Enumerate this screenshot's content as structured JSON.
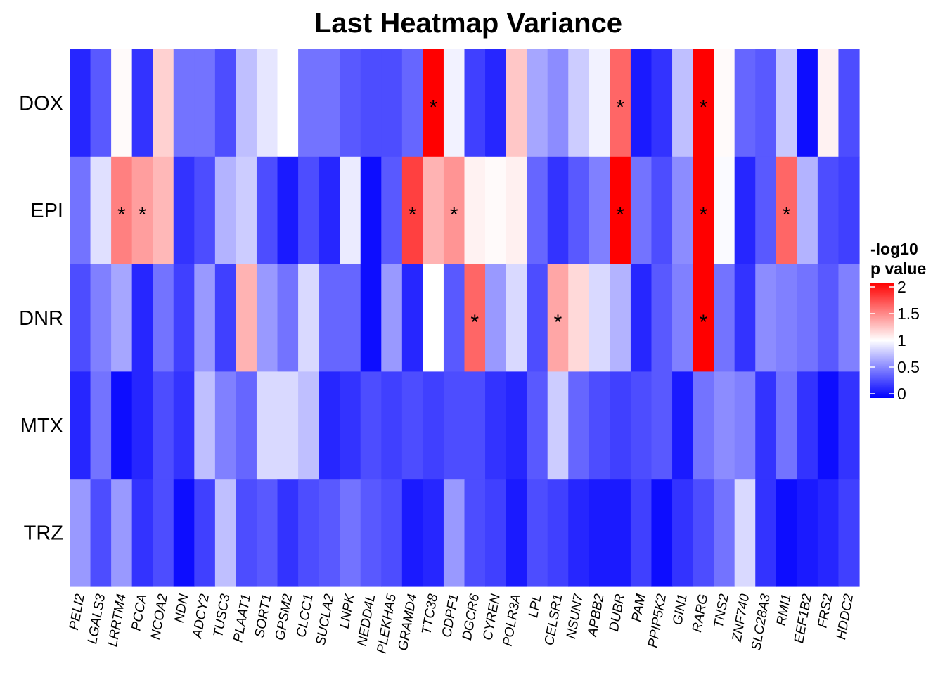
{
  "chart_data": {
    "type": "heatmap",
    "title": "Last Heatmap Variance",
    "xlabel": "",
    "ylabel": "",
    "rows": [
      "DOX",
      "EPI",
      "DNR",
      "MTX",
      "TRZ"
    ],
    "columns": [
      "PELI2",
      "LGALS3",
      "LRRTM4",
      "PCCA",
      "NCOA2",
      "NDN",
      "ADCY2",
      "TUSC3",
      "PLAAT1",
      "SORT1",
      "GPSM2",
      "CLCC1",
      "SUCLA2",
      "LNPK",
      "NEDD4L",
      "PLEKHA5",
      "GRAMD4",
      "TTC38",
      "CDPF1",
      "DGCR6",
      "CYREN",
      "POLR3A",
      "LPL",
      "CELSR1",
      "NSUN7",
      "APBB2",
      "DUBR",
      "PAM",
      "PPIP5K2",
      "GIN1",
      "RARG",
      "TNS2",
      "ZNF740",
      "SLC28A3",
      "RMI1",
      "EEF1B2",
      "FRS2",
      "HDDC2"
    ],
    "values": [
      [
        0.15,
        0.35,
        1.02,
        0.2,
        1.18,
        0.45,
        0.45,
        0.3,
        0.75,
        0.9,
        1.0,
        0.45,
        0.45,
        0.35,
        0.3,
        0.3,
        0.4,
        2.0,
        0.95,
        0.25,
        0.15,
        1.22,
        0.65,
        0.55,
        0.8,
        0.95,
        1.6,
        0.1,
        0.2,
        0.75,
        2.0,
        1.02,
        0.4,
        0.35,
        0.78,
        0.05,
        1.05,
        0.3
      ],
      [
        0.45,
        0.88,
        1.5,
        1.38,
        1.28,
        0.2,
        0.3,
        0.7,
        0.8,
        0.3,
        0.1,
        0.3,
        0.15,
        0.92,
        0.05,
        0.35,
        1.75,
        1.3,
        1.42,
        1.05,
        1.02,
        1.06,
        0.4,
        0.2,
        0.35,
        0.5,
        2.0,
        0.45,
        0.3,
        0.55,
        2.0,
        0.98,
        0.15,
        0.35,
        1.6,
        0.7,
        0.3,
        0.25
      ],
      [
        0.3,
        0.5,
        0.65,
        0.15,
        0.45,
        0.25,
        0.6,
        0.25,
        1.3,
        0.6,
        0.45,
        0.85,
        0.4,
        0.4,
        0.05,
        0.6,
        0.15,
        1.0,
        0.35,
        1.6,
        0.6,
        0.85,
        0.3,
        1.35,
        1.15,
        0.85,
        0.7,
        0.15,
        0.35,
        0.5,
        2.0,
        0.45,
        0.2,
        0.55,
        0.5,
        0.45,
        0.35,
        0.5
      ],
      [
        0.15,
        0.45,
        0.05,
        0.15,
        0.3,
        0.2,
        0.75,
        0.5,
        0.4,
        0.85,
        0.85,
        0.75,
        0.15,
        0.2,
        0.3,
        0.25,
        0.3,
        0.25,
        0.3,
        0.3,
        0.2,
        0.15,
        0.35,
        0.8,
        0.4,
        0.3,
        0.25,
        0.3,
        0.35,
        0.1,
        0.45,
        0.55,
        0.5,
        0.2,
        0.45,
        0.2,
        0.05,
        0.2
      ],
      [
        0.6,
        0.3,
        0.6,
        0.2,
        0.3,
        0.05,
        0.25,
        0.75,
        0.3,
        0.35,
        0.2,
        0.3,
        0.35,
        0.45,
        0.35,
        0.3,
        0.1,
        0.15,
        0.6,
        0.3,
        0.25,
        0.1,
        0.3,
        0.25,
        0.15,
        0.1,
        0.1,
        0.25,
        0.05,
        0.2,
        0.3,
        0.45,
        0.85,
        0.2,
        0.05,
        0.1,
        0.15,
        0.25
      ]
    ],
    "significant": [
      [
        0,
        17
      ],
      [
        0,
        26
      ],
      [
        0,
        30
      ],
      [
        1,
        2
      ],
      [
        1,
        3
      ],
      [
        1,
        16
      ],
      [
        1,
        18
      ],
      [
        1,
        26
      ],
      [
        1,
        30
      ],
      [
        1,
        34
      ],
      [
        2,
        19
      ],
      [
        2,
        23
      ],
      [
        2,
        30
      ]
    ],
    "significance_marker": "*",
    "legend": {
      "title_lines": [
        "-log10",
        "p value"
      ],
      "ticks": [
        0,
        0.5,
        1,
        1.5,
        2
      ],
      "tick_labels": [
        "0",
        "0.5",
        "1",
        "1.5",
        "2"
      ],
      "range": [
        0,
        2
      ],
      "placement": "right",
      "colors": {
        "low": "#0000FF",
        "mid": "#FFFFFF",
        "high": "#FF0000"
      },
      "midpoint": 1
    }
  }
}
